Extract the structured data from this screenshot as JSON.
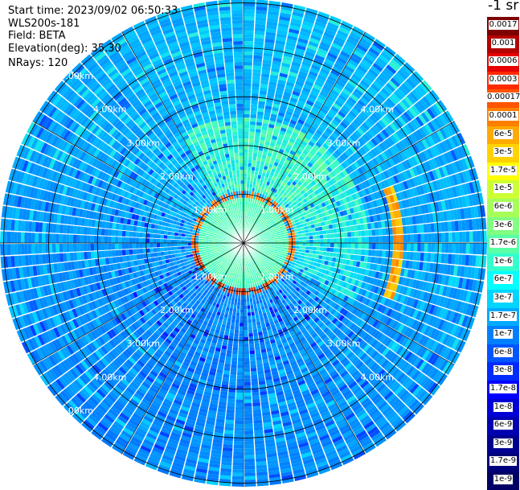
{
  "header": {
    "start_time": "Start time: 2023/09/02 06:50:33",
    "instrument": "WLS200s-181",
    "field": "Field: BETA",
    "elevation": "Elevation(deg): 35.30",
    "nrays": "NRays: 120"
  },
  "chart_data": {
    "type": "heatmap",
    "projection": "polar-ppi",
    "field": "BETA",
    "n_rays": 120,
    "max_range_km": 5.0,
    "range_rings_km": [
      1.0,
      2.0,
      3.0,
      4.0,
      5.0
    ],
    "range_labels": [
      "1.00km",
      "2.00km",
      "3.00km",
      "4.00km",
      "5.00km"
    ],
    "spoke_step_deg": 30,
    "colorbar": {
      "unit_label": "-1 sr",
      "ticks": [
        "0.0017",
        "0.001",
        "0.0006",
        "0.0003",
        "0.00017",
        "0.0001",
        "6e-5",
        "3e-5",
        "1.7e-5",
        "1e-5",
        "6e-6",
        "3e-6",
        "1.7e-6",
        "1e-6",
        "6e-7",
        "3e-7",
        "1.7e-7",
        "1e-7",
        "6e-8",
        "3e-8",
        "1.7e-8",
        "1e-8",
        "6e-9",
        "3e-9",
        "1.7e-9",
        "1e-9"
      ],
      "colors": [
        "#7d0000",
        "#b40000",
        "#e60000",
        "#ff2a00",
        "#ff5500",
        "#ff8000",
        "#ffaa00",
        "#ffd200",
        "#ffff00",
        "#ccff33",
        "#a6ff59",
        "#80ff80",
        "#59ffa6",
        "#33ffcc",
        "#00ffff",
        "#00d5ff",
        "#00aaff",
        "#0080ff",
        "#0055ff",
        "#002bff",
        "#0000ff",
        "#0000d6",
        "#0000b0",
        "#000090",
        "#00007a",
        "#000066"
      ]
    },
    "features": {
      "ring_radius_km": 1.0,
      "ring_level": "high (1e-4 to 1e-3)",
      "near_field_level": "low (~1e-7)",
      "far_field_level": "1e-8 to 1e-7",
      "east_arc_range_km": 3.2
    }
  }
}
